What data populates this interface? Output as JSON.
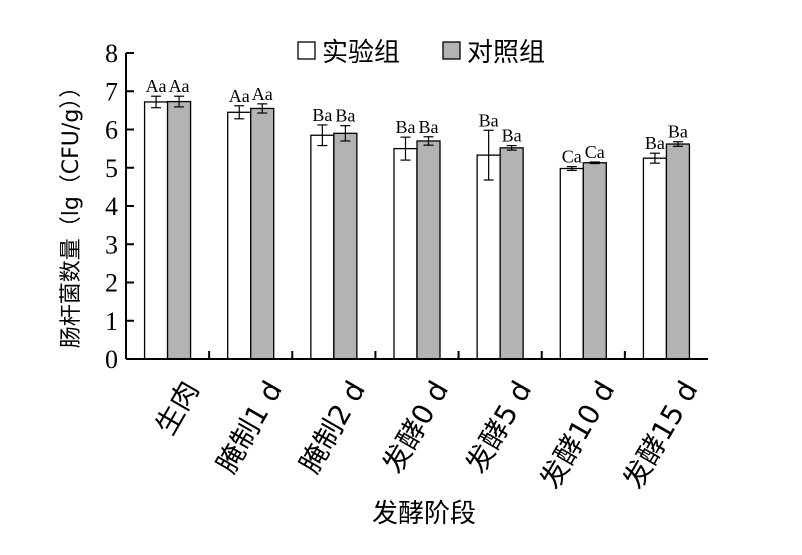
{
  "chart_data": {
    "type": "bar",
    "xlabel": "发酵阶段",
    "ylabel": "肠杆菌数量（lg（CFU/g））",
    "ylim": [
      0,
      8
    ],
    "yticks": [
      0,
      1,
      2,
      3,
      4,
      5,
      6,
      7,
      8
    ],
    "legend_position": "top",
    "categories": [
      "生肉",
      "腌制1 d",
      "腌制2 d",
      "发酵0 d",
      "发酵5 d",
      "发酵10 d",
      "发酵15 d"
    ],
    "series": [
      {
        "name": "实验组",
        "color": "#ffffff",
        "values": [
          6.72,
          6.45,
          5.85,
          5.5,
          5.33,
          4.98,
          5.25
        ],
        "errors": [
          0.15,
          0.17,
          0.27,
          0.3,
          0.65,
          0.05,
          0.13
        ],
        "labels": [
          "Aa",
          "Aa",
          "Ba",
          "Ba",
          "Ba",
          "Ca",
          "Ba"
        ]
      },
      {
        "name": "对照组",
        "color": "#b3b3b3",
        "values": [
          6.73,
          6.55,
          5.9,
          5.7,
          5.52,
          5.13,
          5.62
        ],
        "errors": [
          0.14,
          0.12,
          0.2,
          0.11,
          0.06,
          0.02,
          0.06
        ],
        "labels": [
          "Aa",
          "Aa",
          "Ba",
          "Ba",
          "Ba",
          "Ca",
          "Ba"
        ]
      }
    ]
  }
}
